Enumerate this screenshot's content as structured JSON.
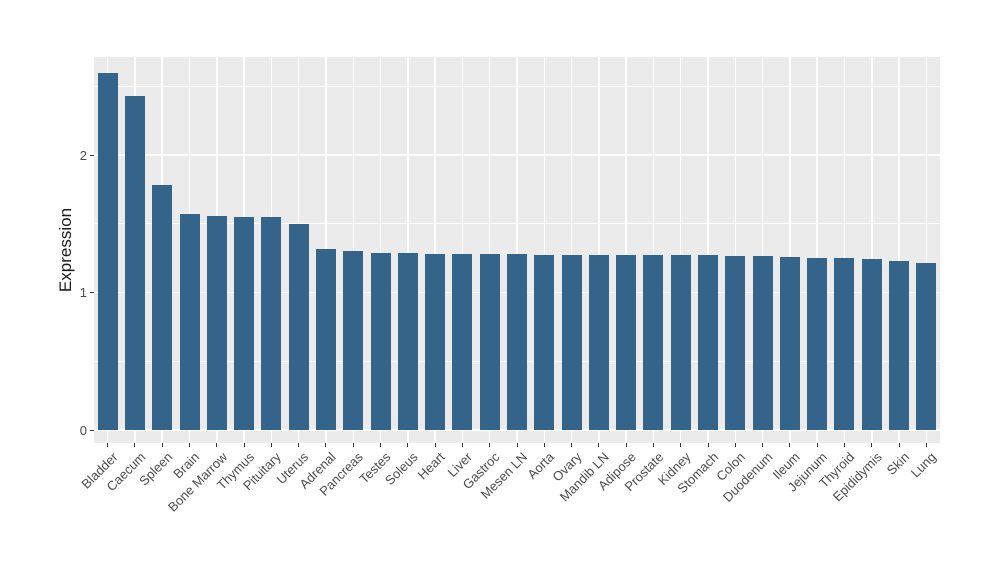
{
  "figure": {
    "background_color": "#FFFFFF",
    "panel_background_color": "#EBEBEB",
    "gridline_color": "#FFFFFF",
    "bar_color": "#35648B",
    "axis_text_color": "#4D4D4D",
    "axis_title_color": "#1A1A1A",
    "tick_mark_color": "#333333"
  },
  "chart_data": {
    "type": "bar",
    "title": "",
    "xlabel": "",
    "ylabel": "Expression",
    "ylim": [
      0,
      2.71
    ],
    "yticks": [
      0,
      1,
      2
    ],
    "yticks_minor": [
      0.5,
      1.5,
      2.5
    ],
    "grid": "white major horizontal at integers, minor at halves, vertical major at each category; drawn on gray panel",
    "legend_position": "none",
    "x_tick_label_angle": 45,
    "categories": [
      "Bladder",
      "Caecum",
      "Spleen",
      "Brain",
      "Bone Marrow",
      "Thymus",
      "Pituitary",
      "Uterus",
      "Adrenal",
      "Pancreas",
      "Testes",
      "Soleus",
      "Heart",
      "Liver",
      "Gastroc",
      "Mesen LN",
      "Aorta",
      "Ovary",
      "Mandib LN",
      "Adipose",
      "Prostate",
      "Kidney",
      "Stomach",
      "Colon",
      "Duodenum",
      "Ileum",
      "Jejunum",
      "Thyroid",
      "Epididymis",
      "Skin",
      "Lung"
    ],
    "values": [
      2.6,
      2.43,
      1.78,
      1.57,
      1.56,
      1.55,
      1.55,
      1.5,
      1.32,
      1.3,
      1.29,
      1.285,
      1.28,
      1.28,
      1.278,
      1.277,
      1.276,
      1.275,
      1.274,
      1.273,
      1.272,
      1.271,
      1.27,
      1.266,
      1.262,
      1.258,
      1.254,
      1.25,
      1.244,
      1.232,
      1.217
    ]
  }
}
